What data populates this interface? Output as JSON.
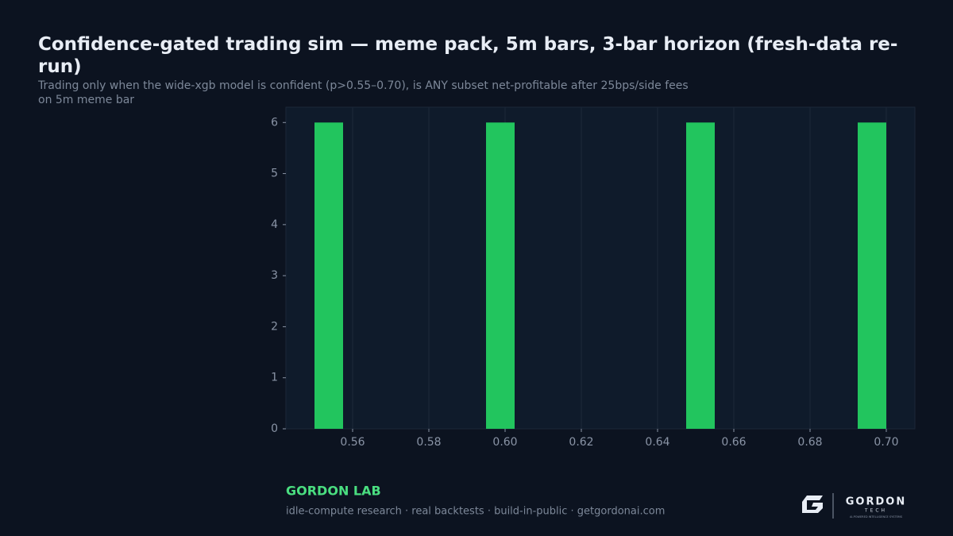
{
  "chart_data": {
    "type": "histogram",
    "title": "Confidence-gated trading sim — meme pack, 5m bars, 3-bar horizon (fresh-data re-run)",
    "subtitle": "Trading only when the wide-xgb model is confident (p>0.55–0.70), is ANY subset net-profitable after 25bps/side fees on 5m meme bar",
    "bins": [
      0.55,
      0.5575,
      0.565,
      0.5725,
      0.58,
      0.5875,
      0.595,
      0.6025,
      0.61,
      0.6175,
      0.625,
      0.6325,
      0.64,
      0.6475,
      0.655,
      0.6625,
      0.67,
      0.6775,
      0.685,
      0.6925,
      0.7
    ],
    "values": [
      6,
      0,
      0,
      0,
      0,
      0,
      6,
      0,
      0,
      0,
      0,
      0,
      0,
      6,
      0,
      0,
      0,
      0,
      0,
      6
    ],
    "color": "#22c55e",
    "xlim": [
      0.5425,
      0.7075
    ],
    "xticks": [
      0.56,
      0.58,
      {
        "value": 0.6,
        "label": "0.60"
      },
      0.62,
      0.64,
      0.66,
      0.68,
      {
        "value": 0.7,
        "label": "0.70"
      }
    ],
    "ylim": [
      0,
      6.3
    ],
    "yticks": [
      0,
      1,
      2,
      3,
      4,
      5,
      6
    ],
    "grid": true
  },
  "footer": {
    "brand": "GORDON LAB",
    "tagline": "idle-compute research · real backtests · build-in-public · getgordonai.com",
    "logo_name": "GORDON",
    "logo_sub": "TECH",
    "logo_motto": "AI-POWERED INTELLIGENCE SYSTEMS"
  }
}
